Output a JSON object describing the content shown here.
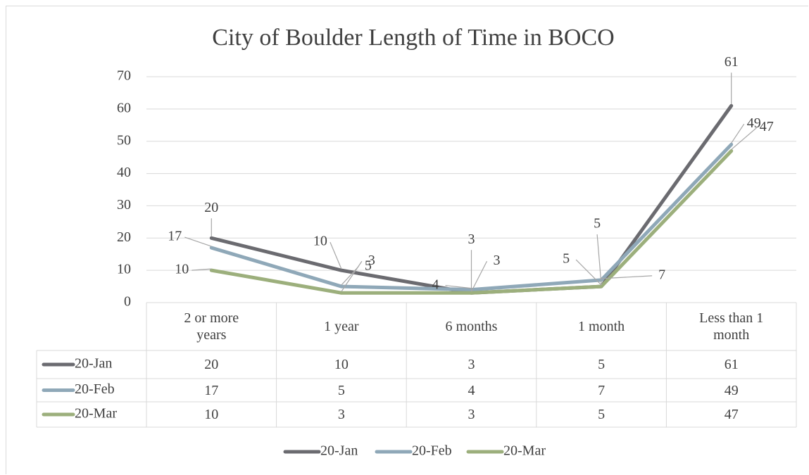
{
  "chart_data": {
    "type": "line",
    "title": "City of Boulder Length of Time in BOCO",
    "categories": [
      "2 or more years",
      "1 year",
      "6 months",
      "1 month",
      "Less than 1 month"
    ],
    "series": [
      {
        "name": "20-Jan",
        "color": "#6b6b70",
        "values": [
          20,
          10,
          3,
          5,
          61
        ]
      },
      {
        "name": "20-Feb",
        "color": "#8fa8b8",
        "values": [
          17,
          5,
          4,
          7,
          49
        ]
      },
      {
        "name": "20-Mar",
        "color": "#9caf7c",
        "values": [
          10,
          3,
          3,
          5,
          47
        ]
      }
    ],
    "ylim": [
      0,
      70
    ],
    "yticks": [
      0,
      10,
      20,
      30,
      40,
      50,
      60,
      70
    ],
    "grid": true,
    "legend": "bottom",
    "data_table": true
  }
}
